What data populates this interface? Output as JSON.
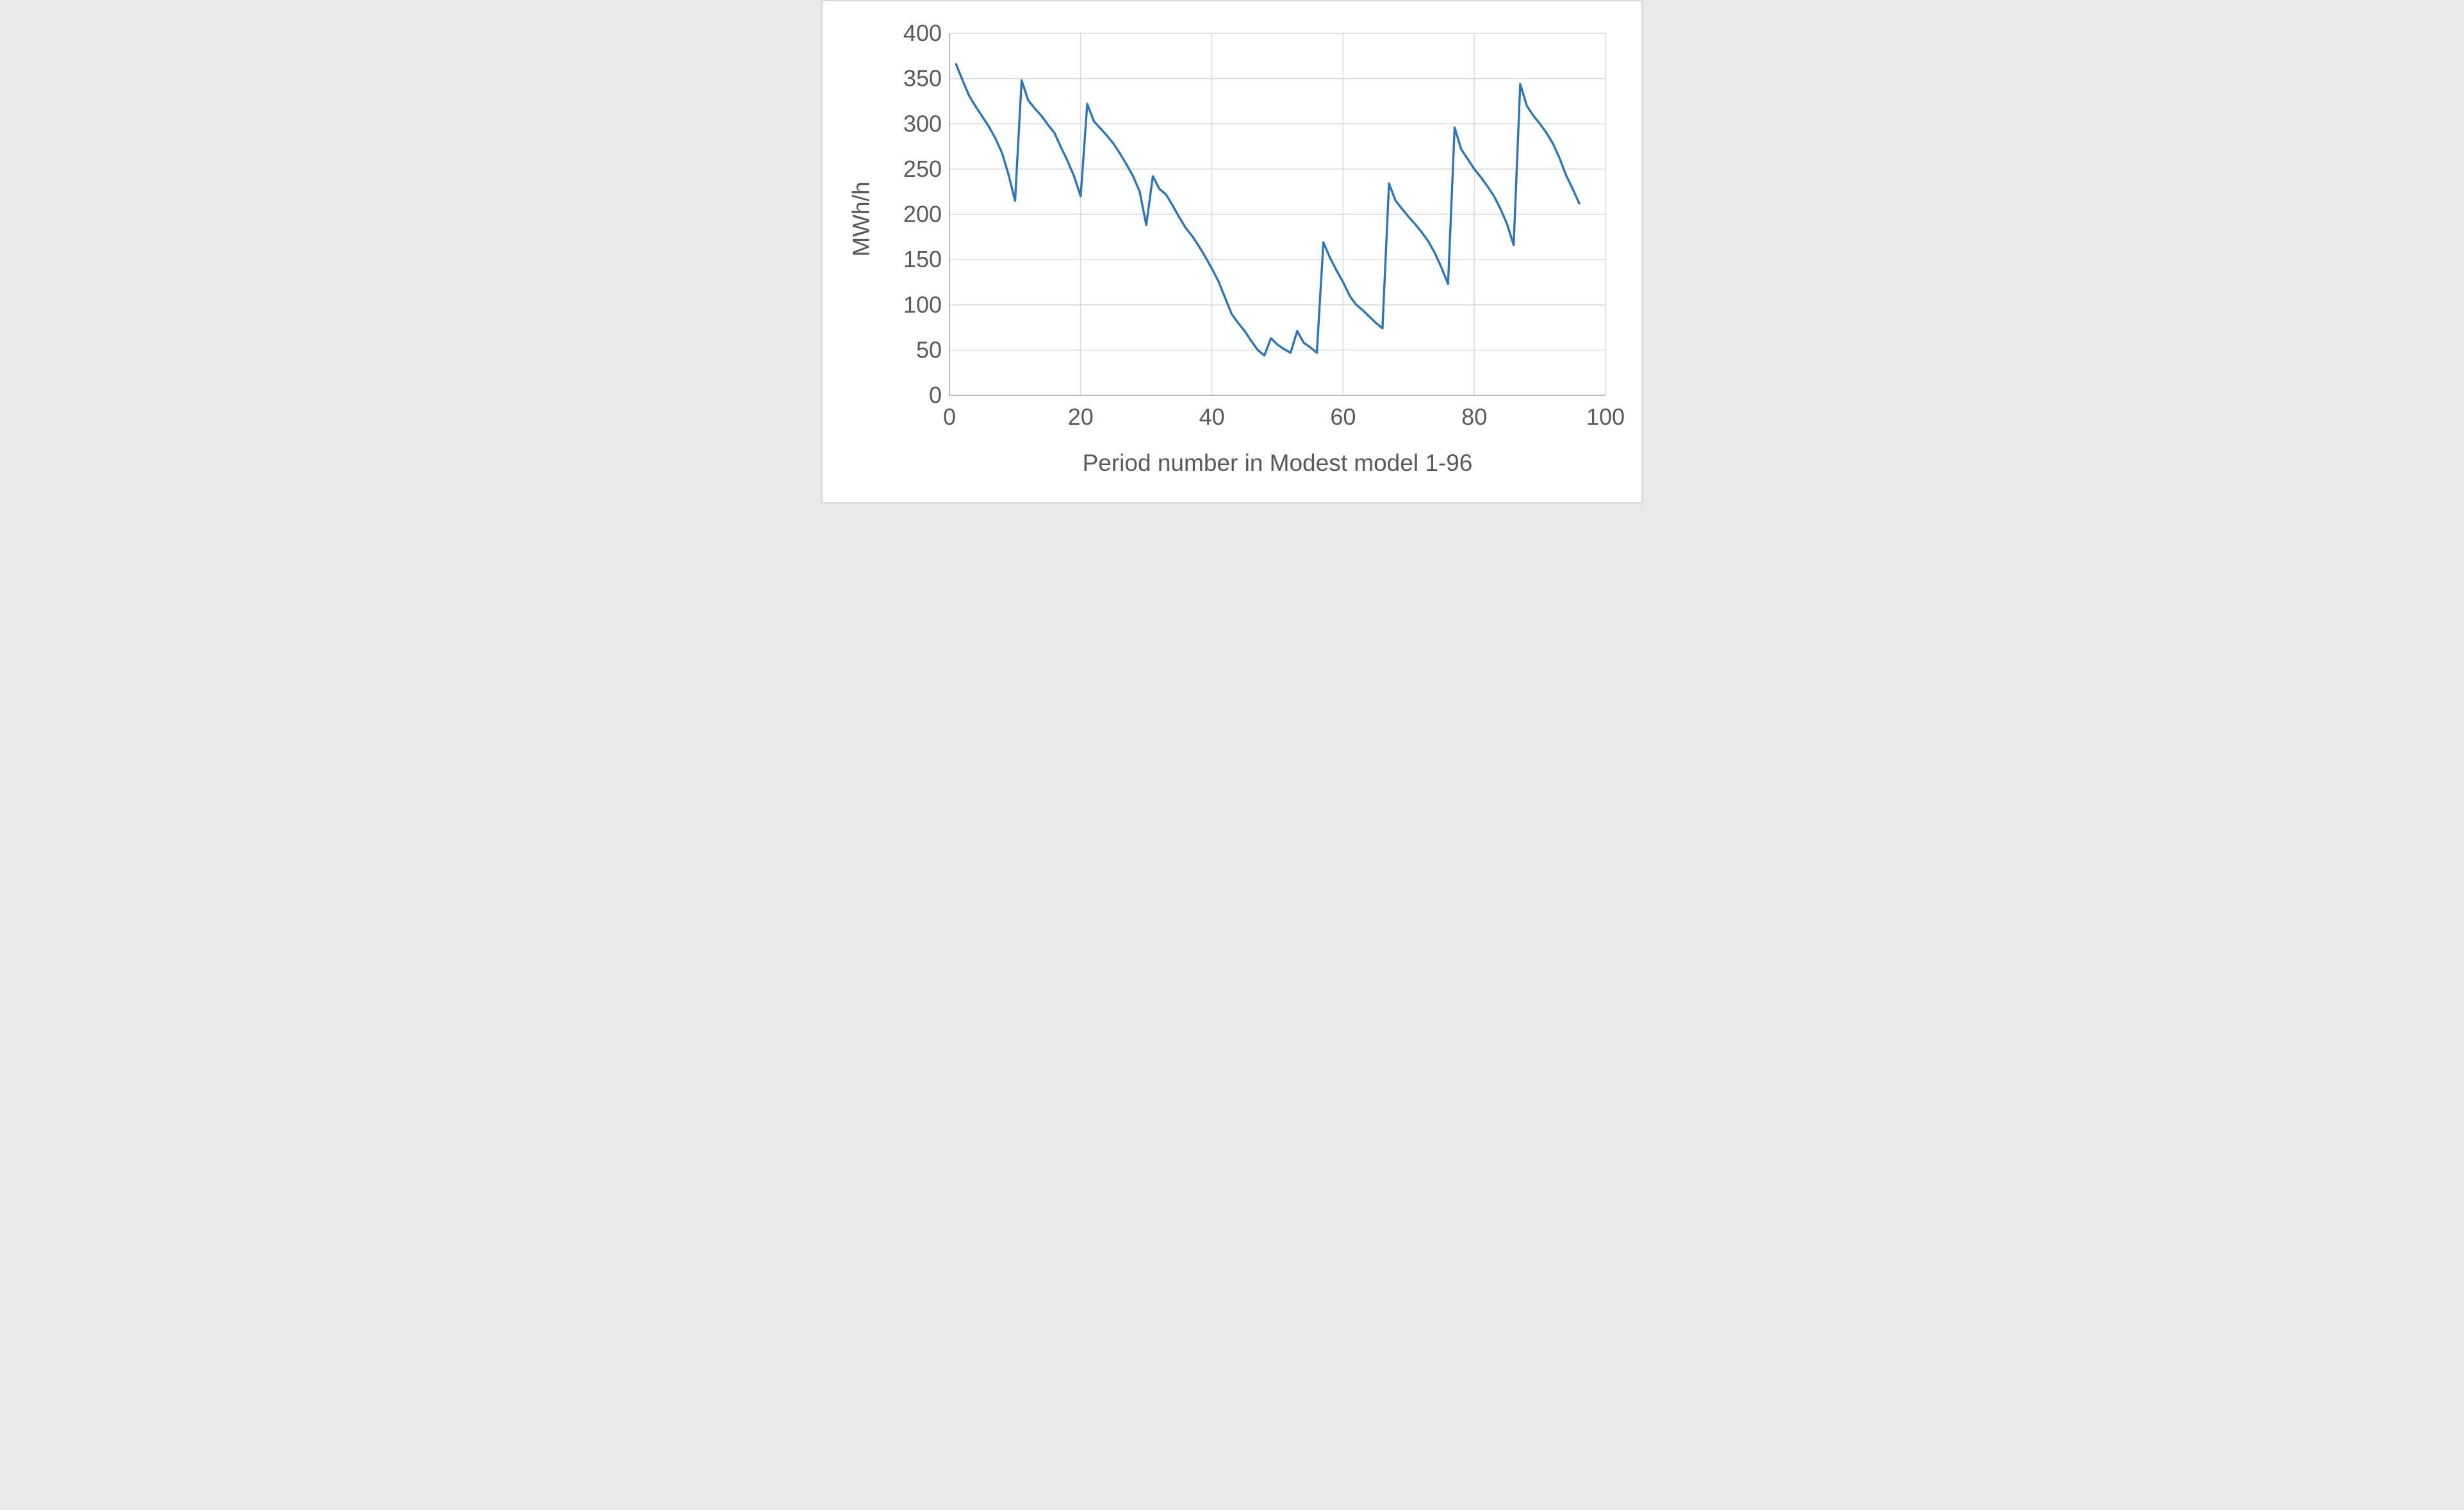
{
  "figure": {
    "background": "#FFFFFF",
    "border_color": "#D9D9D9"
  },
  "chart_data": {
    "type": "line",
    "title": "",
    "xlabel": "Period number in Modest model 1-96",
    "ylabel": "MWh/h",
    "xlim": [
      0,
      100
    ],
    "ylim": [
      0,
      400
    ],
    "x_ticks": [
      0,
      20,
      40,
      60,
      80,
      100
    ],
    "y_ticks": [
      0,
      50,
      100,
      150,
      200,
      250,
      300,
      350,
      400
    ],
    "grid": true,
    "legend": "none",
    "style": {
      "line_color": "#2E75B6",
      "line_width": 3.4,
      "gridline_color": "#D9D9D9",
      "axis_line_color": "#A6A6A6",
      "tick_label_color": "#595959"
    },
    "x": [
      1,
      2,
      3,
      4,
      5,
      6,
      7,
      8,
      9,
      10,
      11,
      12,
      13,
      14,
      15,
      16,
      17,
      18,
      19,
      20,
      21,
      22,
      23,
      24,
      25,
      26,
      27,
      28,
      29,
      30,
      31,
      32,
      33,
      34,
      35,
      36,
      37,
      38,
      39,
      40,
      41,
      42,
      43,
      44,
      45,
      46,
      47,
      48,
      49,
      50,
      51,
      52,
      53,
      54,
      55,
      56,
      57,
      58,
      59,
      60,
      61,
      62,
      63,
      64,
      65,
      66,
      67,
      68,
      69,
      70,
      71,
      72,
      73,
      74,
      75,
      76,
      77,
      78,
      79,
      80,
      81,
      82,
      83,
      84,
      85,
      86,
      87,
      88,
      89,
      90,
      91,
      92,
      93,
      94,
      95,
      96
    ],
    "values": [
      366,
      348,
      331,
      319,
      308,
      297,
      284,
      268,
      244,
      215,
      348,
      326,
      317,
      309,
      299,
      290,
      274,
      259,
      242,
      220,
      322,
      303,
      295,
      287,
      278,
      267,
      255,
      242,
      225,
      188,
      242,
      228,
      222,
      210,
      197,
      185,
      176,
      165,
      153,
      140,
      126,
      108,
      90,
      80,
      71,
      60,
      50,
      44,
      63,
      56,
      51,
      47,
      71,
      58,
      53,
      47,
      169,
      152,
      138,
      125,
      110,
      100,
      94,
      87,
      80,
      74,
      234,
      215,
      206,
      197,
      189,
      180,
      170,
      157,
      141,
      123,
      296,
      272,
      261,
      250,
      241,
      231,
      220,
      206,
      189,
      166,
      344,
      320,
      309,
      300,
      290,
      278,
      262,
      243,
      228,
      212
    ]
  }
}
